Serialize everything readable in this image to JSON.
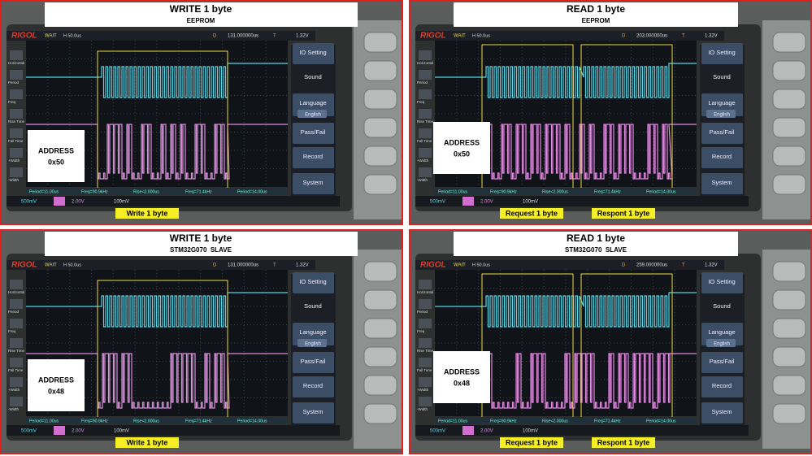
{
  "scope": {
    "brand": "RIGOL",
    "status": "WAIT",
    "timebase": "H 50.0us",
    "delay_label": "D",
    "trigger_label": "T",
    "trigger_level": "1.32V",
    "menu": [
      "IO Setting",
      "Sound",
      "Language",
      "English",
      "Pass/Fail",
      "Record",
      "System"
    ],
    "side": [
      "Horizontal",
      "Period",
      "Freq",
      "Rise Time",
      "Fall Time",
      "+Width",
      "-Width"
    ],
    "ch1": "500mV",
    "ch2": "2.00V",
    "math": "100mV",
    "measures": [
      "Period=11.00us",
      "Freq=90.9kHz",
      "Rise<2.000us",
      "Freq=71.4kHz",
      "Period=14.00us"
    ]
  },
  "panels": [
    {
      "title": "WRITE 1 byte",
      "subtitle": "EEPROM",
      "address": [
        "ADDRESS",
        "0x50"
      ],
      "delay": "131.000000us",
      "labels": [
        "Write 1 byte"
      ]
    },
    {
      "title": "READ 1 byte",
      "subtitle": "EEPROM",
      "address": [
        "ADDRESS",
        "0x50"
      ],
      "delay": "203.000000us",
      "labels": [
        "Request 1 byte",
        "Respont 1 byte"
      ]
    },
    {
      "title": "WRITE 1 byte",
      "subtitle": "STM32G070  SLAVE",
      "address": [
        "ADDRESS",
        "0x48"
      ],
      "delay": "131.000000us",
      "labels": [
        "Write 1 byte"
      ]
    },
    {
      "title": "READ 1 byte",
      "subtitle": "STM32G070  SLAVE",
      "address": [
        "ADDRESS",
        "0x48"
      ],
      "delay": "259.000000us",
      "labels": [
        "Request 1 byte",
        "Respont 1 byte"
      ]
    }
  ]
}
